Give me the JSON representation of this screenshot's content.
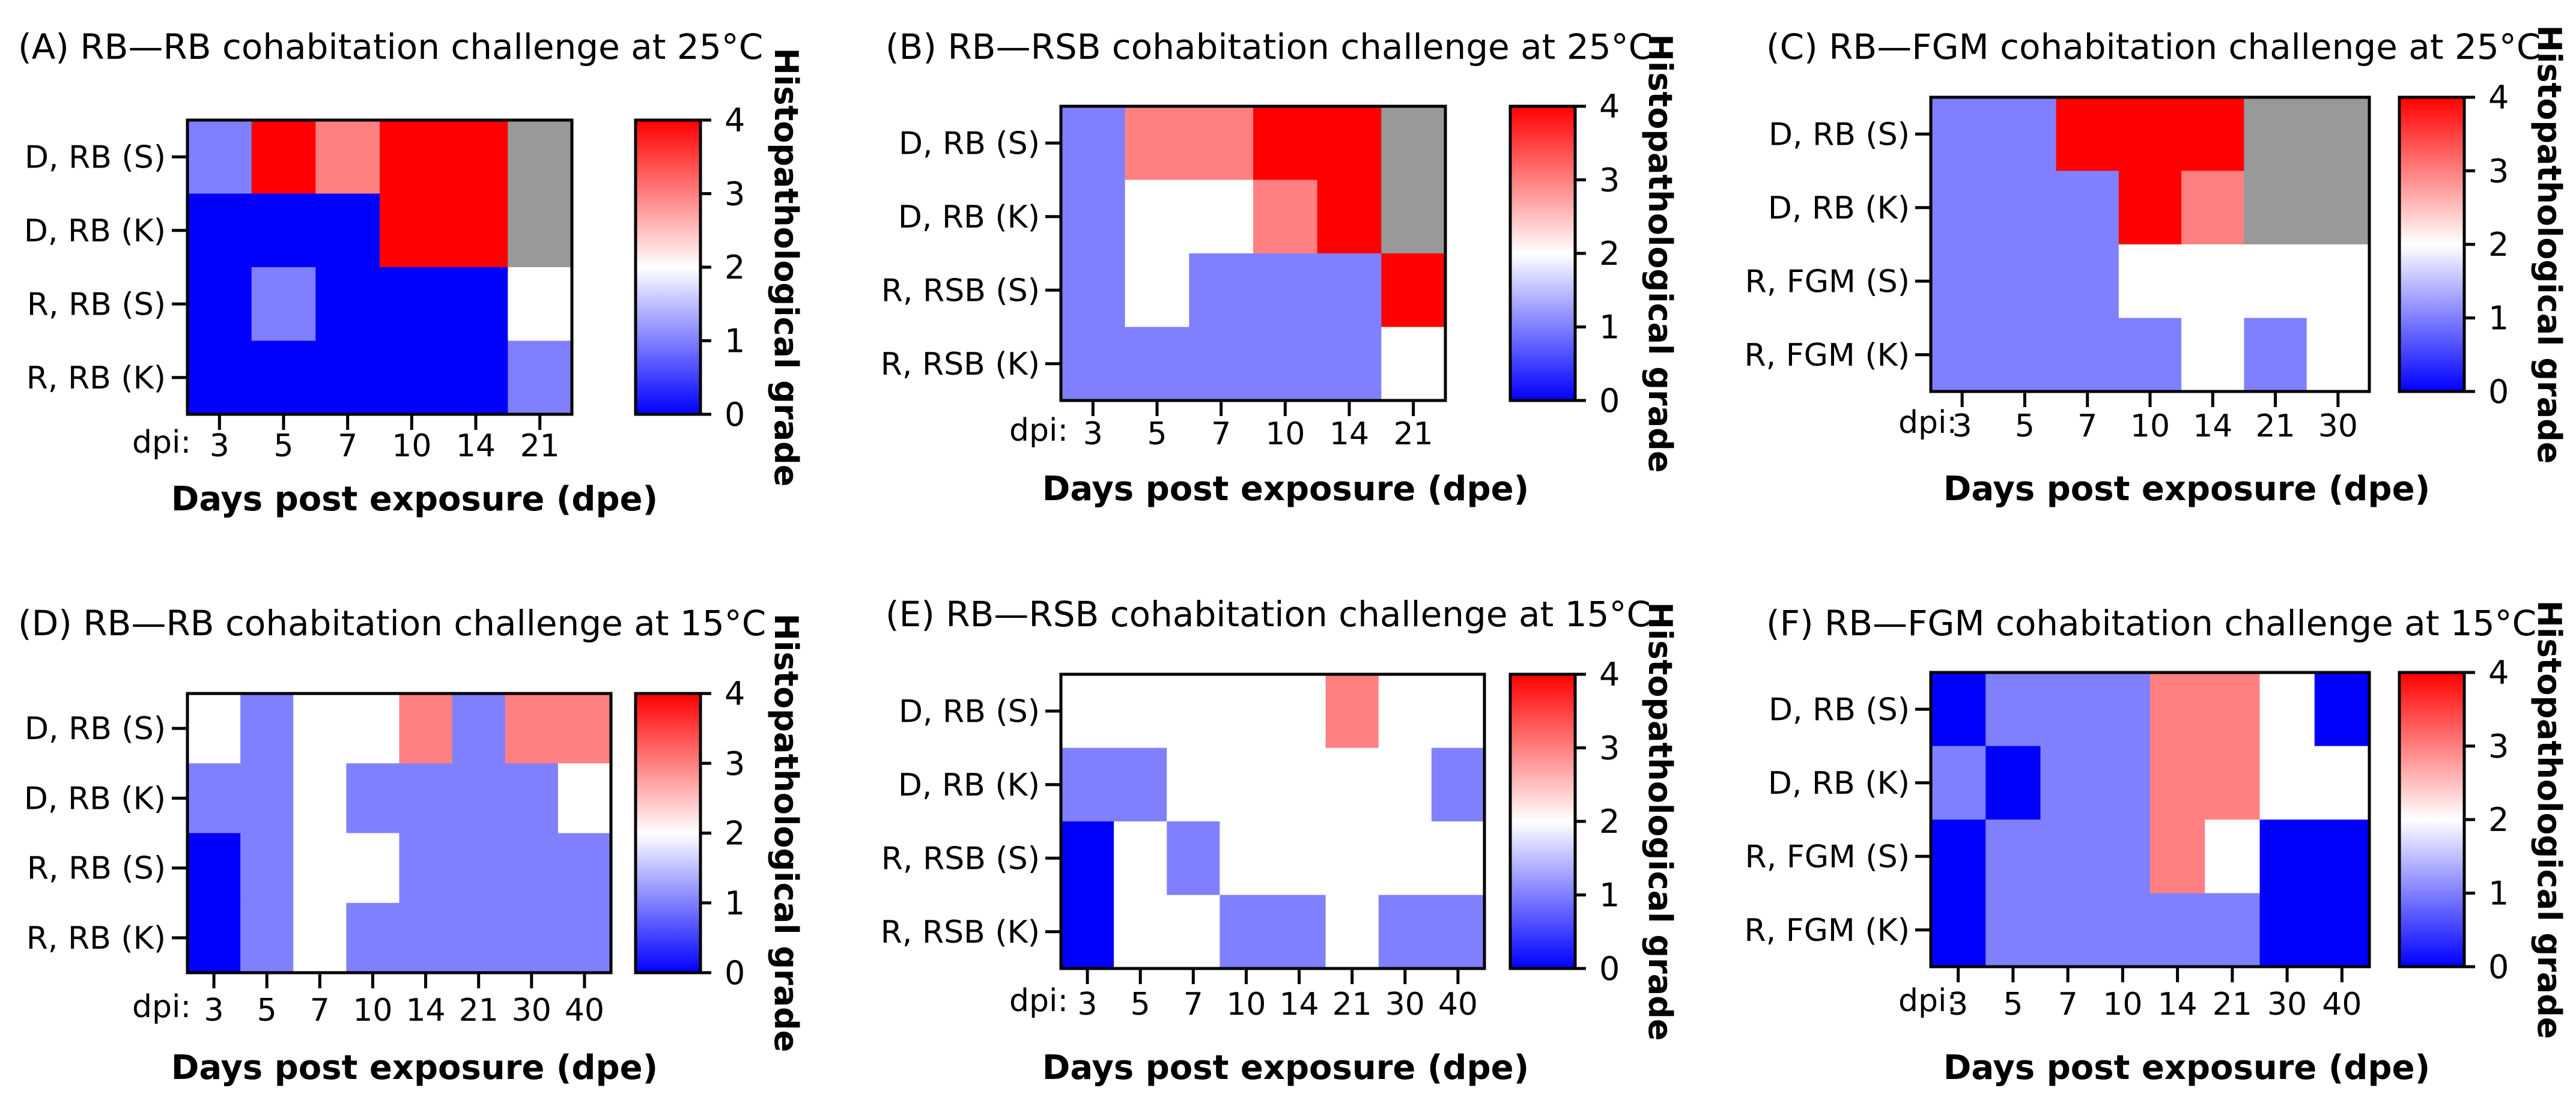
{
  "colors": {
    "na": "#999999",
    "frame": "#000000"
  },
  "colorbar": {
    "ticks": [
      "0",
      "1",
      "2",
      "3",
      "4"
    ],
    "label": "Histopathological grade",
    "stops": [
      "#0000ff",
      "#ffffff",
      "#ff0000"
    ]
  },
  "chart_data": [
    {
      "type": "heatmap",
      "panel": "A",
      "title": "(A) RB—RB cohabitation challenge at 25°C",
      "rows": [
        "D, RB (S)",
        "D, RB (K)",
        "R, RB (S)",
        "R, RB (K)"
      ],
      "columns": [
        "3",
        "5",
        "7",
        "10",
        "14",
        "21"
      ],
      "dpi_label": "dpi:",
      "xlabel": "Days post exposure (dpe)",
      "zlabel": "Histopathological grade",
      "zlim": [
        0,
        4
      ],
      "values": [
        [
          1,
          4,
          3,
          4,
          4,
          null
        ],
        [
          0,
          0,
          0,
          4,
          4,
          null
        ],
        [
          0,
          1,
          0,
          0,
          0,
          2
        ],
        [
          0,
          0,
          0,
          0,
          0,
          1
        ]
      ]
    },
    {
      "type": "heatmap",
      "panel": "B",
      "title": "(B) RB—RSB cohabitation challenge at 25°C",
      "rows": [
        "D, RB (S)",
        "D, RB (K)",
        "R, RSB (S)",
        "R, RSB (K)"
      ],
      "columns": [
        "3",
        "5",
        "7",
        "10",
        "14",
        "21"
      ],
      "dpi_label": "dpi:",
      "xlabel": "Days post exposure (dpe)",
      "zlabel": "Histopathological grade",
      "zlim": [
        0,
        4
      ],
      "values": [
        [
          1,
          3,
          3,
          4,
          4,
          null
        ],
        [
          1,
          2,
          2,
          3,
          4,
          null
        ],
        [
          1,
          2,
          1,
          1,
          1,
          4
        ],
        [
          1,
          1,
          1,
          1,
          1,
          2
        ]
      ]
    },
    {
      "type": "heatmap",
      "panel": "C",
      "title": "(C) RB—FGM cohabitation challenge at 25°C",
      "rows": [
        "D, RB (S)",
        "D, RB (K)",
        "R, FGM (S)",
        "R, FGM (K)"
      ],
      "columns": [
        "3",
        "5",
        "7",
        "10",
        "14",
        "21",
        "30"
      ],
      "dpi_label": "dpi:",
      "xlabel": "Days post exposure (dpe)",
      "zlabel": "Histopathological grade",
      "zlim": [
        0,
        4
      ],
      "values": [
        [
          1,
          1,
          4,
          4,
          4,
          null,
          null
        ],
        [
          1,
          1,
          1,
          4,
          3,
          null,
          null
        ],
        [
          1,
          1,
          1,
          2,
          2,
          2,
          2
        ],
        [
          1,
          1,
          1,
          1,
          2,
          1,
          2
        ]
      ]
    },
    {
      "type": "heatmap",
      "panel": "D",
      "title": "(D) RB—RB cohabitation challenge at 15°C",
      "rows": [
        "D, RB (S)",
        "D, RB (K)",
        "R, RB (S)",
        "R, RB (K)"
      ],
      "columns": [
        "3",
        "5",
        "7",
        "10",
        "14",
        "21",
        "30",
        "40"
      ],
      "dpi_label": "dpi:",
      "xlabel": "Days post exposure (dpe)",
      "zlabel": "Histopathological grade",
      "zlim": [
        0,
        4
      ],
      "values": [
        [
          2,
          1,
          2,
          2,
          3,
          1,
          3,
          3
        ],
        [
          1,
          1,
          2,
          1,
          1,
          1,
          1,
          2
        ],
        [
          0,
          1,
          2,
          2,
          1,
          1,
          1,
          1
        ],
        [
          0,
          1,
          2,
          1,
          1,
          1,
          1,
          1
        ]
      ]
    },
    {
      "type": "heatmap",
      "panel": "E",
      "title": "(E) RB—RSB cohabitation challenge at 15°C",
      "rows": [
        "D, RB (S)",
        "D, RB (K)",
        "R, RSB (S)",
        "R, RSB (K)"
      ],
      "columns": [
        "3",
        "5",
        "7",
        "10",
        "14",
        "21",
        "30",
        "40"
      ],
      "dpi_label": "dpi:",
      "xlabel": "Days post exposure (dpe)",
      "zlabel": "Histopathological grade",
      "zlim": [
        0,
        4
      ],
      "values": [
        [
          2,
          2,
          2,
          2,
          2,
          3,
          2,
          2
        ],
        [
          1,
          1,
          2,
          2,
          2,
          2,
          2,
          1
        ],
        [
          0,
          2,
          1,
          2,
          2,
          2,
          2,
          2
        ],
        [
          0,
          2,
          2,
          1,
          1,
          2,
          1,
          1
        ]
      ]
    },
    {
      "type": "heatmap",
      "panel": "F",
      "title": "(F) RB—FGM cohabitation challenge at 15°C",
      "rows": [
        "D, RB (S)",
        "D, RB (K)",
        "R, FGM (S)",
        "R, FGM (K)"
      ],
      "columns": [
        "3",
        "5",
        "7",
        "10",
        "14",
        "21",
        "30",
        "40"
      ],
      "dpi_label": "dpi:",
      "xlabel": "Days post exposure (dpe)",
      "zlabel": "Histopathological grade",
      "zlim": [
        0,
        4
      ],
      "values": [
        [
          0,
          1,
          1,
          1,
          3,
          3,
          2,
          0
        ],
        [
          1,
          0,
          1,
          1,
          3,
          3,
          2,
          2
        ],
        [
          0,
          1,
          1,
          1,
          3,
          2,
          0,
          0
        ],
        [
          0,
          1,
          1,
          1,
          1,
          1,
          0,
          0
        ]
      ]
    }
  ]
}
